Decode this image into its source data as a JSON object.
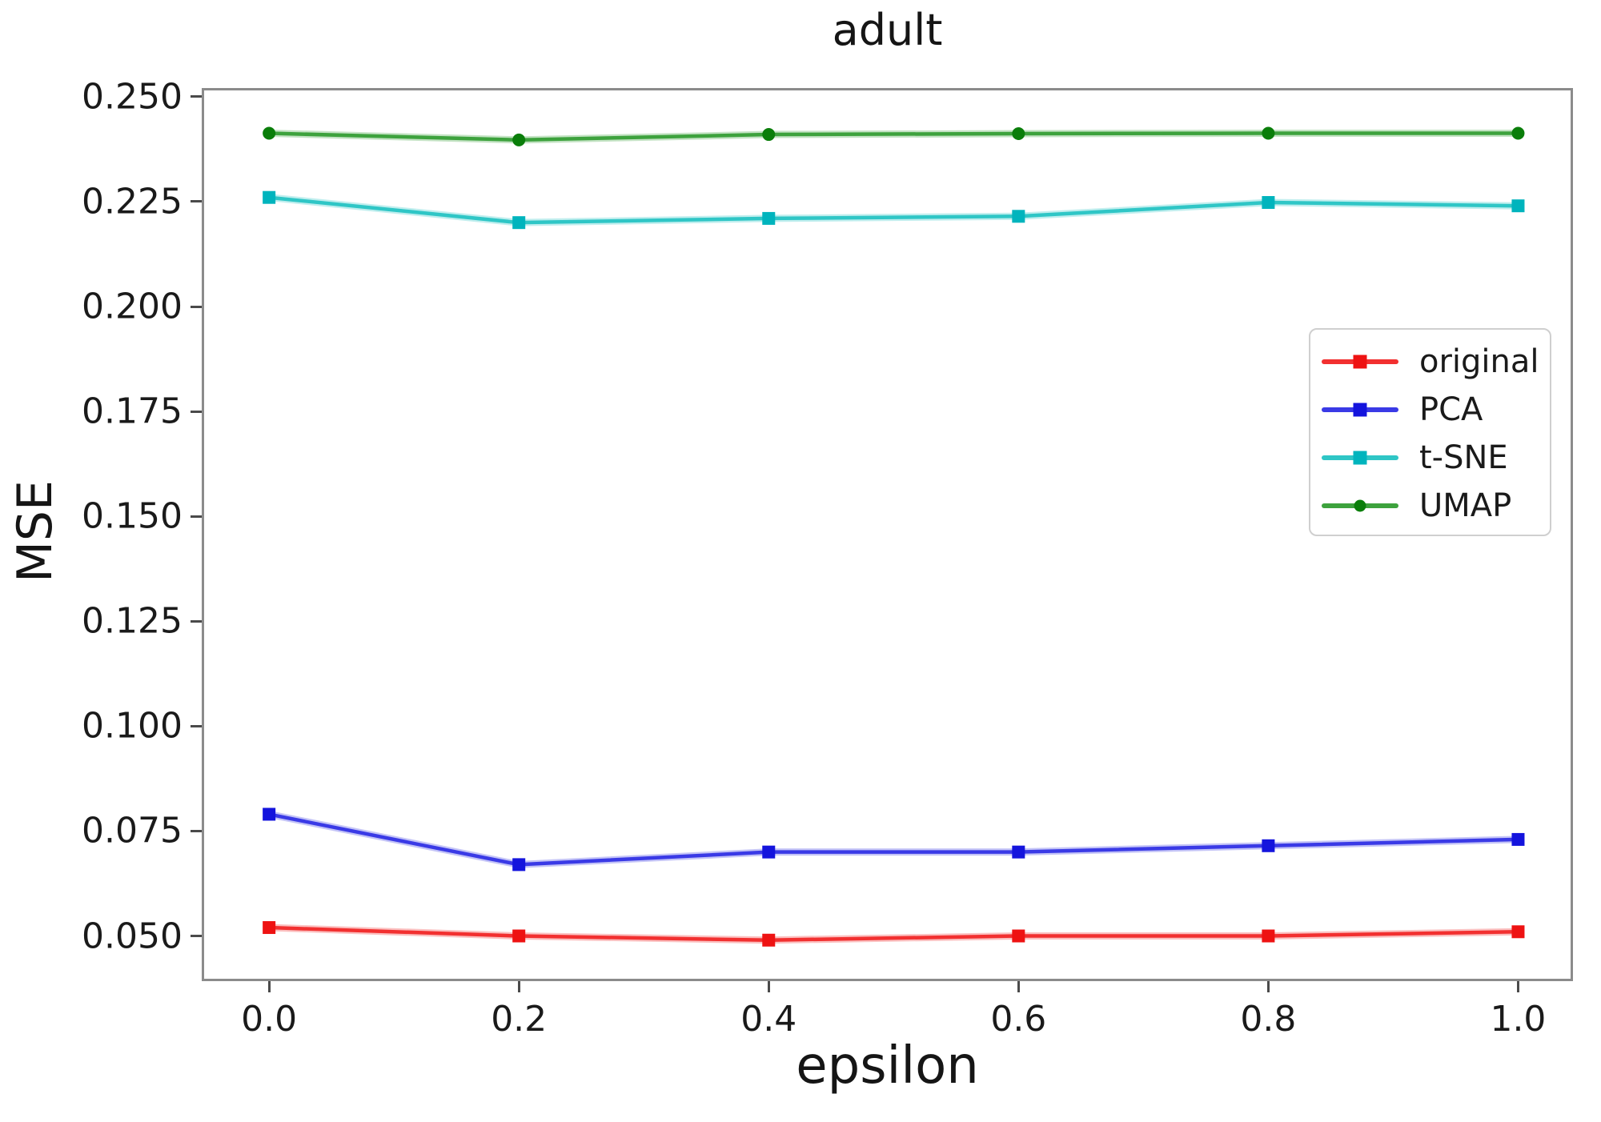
{
  "figure": {
    "title": "adult",
    "x_axis_label": "epsilon",
    "y_axis_label": "MSE"
  },
  "chart_data": {
    "type": "line",
    "title": "adult",
    "xlabel": "epsilon",
    "ylabel": "MSE",
    "grid": false,
    "legend_position": "center-right",
    "x": [
      0.0,
      0.2,
      0.4,
      0.6,
      0.8,
      1.0
    ],
    "x_tick_labels": [
      "0.0",
      "0.2",
      "0.4",
      "0.6",
      "0.8",
      "1.0"
    ],
    "y_tick_values": [
      0.05,
      0.075,
      0.1,
      0.125,
      0.15,
      0.175,
      0.2,
      0.225,
      0.25
    ],
    "y_tick_labels": [
      "0.050",
      "0.075",
      "0.100",
      "0.125",
      "0.150",
      "0.175",
      "0.200",
      "0.225",
      "0.250"
    ],
    "xlim": [
      -0.052,
      1.042
    ],
    "ylim": [
      0.0398,
      0.2515
    ],
    "series": [
      {
        "name": "original",
        "marker": "square",
        "color": "#f23030",
        "marker_color": "#ee1212",
        "values": [
          0.052,
          0.05,
          0.049,
          0.05,
          0.05,
          0.051
        ]
      },
      {
        "name": "PCA",
        "marker": "square",
        "color": "#3a3ae6",
        "marker_color": "#1414dd",
        "values": [
          0.079,
          0.067,
          0.07,
          0.07,
          0.0715,
          0.073
        ]
      },
      {
        "name": "t-SNE",
        "marker": "square",
        "color": "#2fc6c6",
        "marker_color": "#00b4bd",
        "values": [
          0.226,
          0.22,
          0.221,
          0.2215,
          0.2248,
          0.224
        ]
      },
      {
        "name": "UMAP",
        "marker": "circle",
        "color": "#3da23d",
        "marker_color": "#0a7e0a",
        "values": [
          0.2413,
          0.2397,
          0.241,
          0.2412,
          0.2413,
          0.2413
        ]
      }
    ]
  }
}
